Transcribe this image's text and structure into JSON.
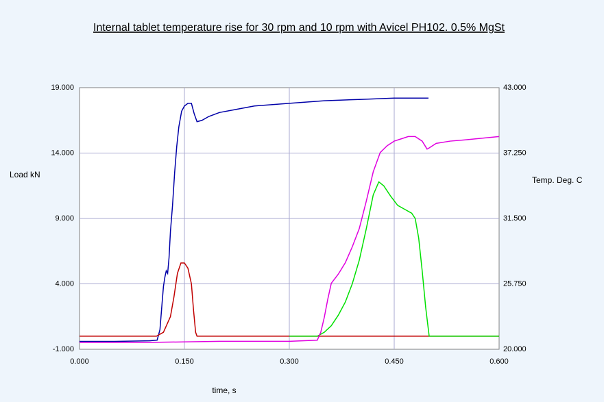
{
  "chart_data": {
    "type": "line",
    "title": "Internal tablet temperature rise for 30 rpm and 10 rpm with Avicel PH102. 0.5% MgSt",
    "x_label": "time, s",
    "y_label": "Load kN",
    "y2_label": "Temp. Deg. C",
    "xlim": [
      0,
      0.6
    ],
    "xticks": [
      {
        "value": 0,
        "label": "0.000"
      },
      {
        "value": 0.15,
        "label": "0.150"
      },
      {
        "value": 0.3,
        "label": "0.300"
      },
      {
        "value": 0.45,
        "label": "0.450"
      },
      {
        "value": 0.6,
        "label": "0.600"
      }
    ],
    "ylim": [
      -1,
      19
    ],
    "yticks": [
      {
        "value": -1,
        "label": "-1.000"
      },
      {
        "value": 4,
        "label": "4.000"
      },
      {
        "value": 9,
        "label": "9.000"
      },
      {
        "value": 14,
        "label": "14.000"
      },
      {
        "value": 19,
        "label": "19.000"
      }
    ],
    "y2lim": [
      20,
      43
    ],
    "y2ticks": [
      {
        "value": 20,
        "label": "20.000"
      },
      {
        "value": 25.75,
        "label": "25.750"
      },
      {
        "value": 31.5,
        "label": "31.500"
      },
      {
        "value": 37.25,
        "label": "37.250"
      },
      {
        "value": 43,
        "label": "43.000"
      }
    ],
    "grid": true,
    "series": [
      {
        "color": "#0000a8",
        "x": [
          0,
          0.05,
          0.1,
          0.111,
          0.115,
          0.118,
          0.12,
          0.122,
          0.124,
          0.126,
          0.128,
          0.13,
          0.133,
          0.136,
          0.139,
          0.142,
          0.146,
          0.15,
          0.155,
          0.16,
          0.164,
          0.168,
          0.175,
          0.185,
          0.2,
          0.22,
          0.25,
          0.3,
          0.35,
          0.4,
          0.45,
          0.499
        ],
        "values": [
          -0.4,
          -0.4,
          -0.35,
          -0.3,
          0.5,
          2.5,
          3.8,
          4.5,
          5,
          4.8,
          6,
          8,
          10,
          12.5,
          14.5,
          16,
          17.2,
          17.6,
          17.8,
          17.8,
          17,
          16.4,
          16.5,
          16.8,
          17.1,
          17.3,
          17.6,
          17.8,
          18.0,
          18.1,
          18.2,
          18.2
        ]
      },
      {
        "color": "#c00000",
        "x": [
          0,
          0.11,
          0.12,
          0.13,
          0.135,
          0.14,
          0.145,
          0.15,
          0.155,
          0.16,
          0.163,
          0.166,
          0.168,
          0.6
        ],
        "values": [
          0,
          0,
          0.3,
          1.5,
          3,
          4.8,
          5.6,
          5.6,
          5.2,
          4.0,
          2,
          0.3,
          0,
          0
        ]
      },
      {
        "color": "#00e000",
        "x": [
          0.3,
          0.34,
          0.35,
          0.36,
          0.37,
          0.38,
          0.39,
          0.4,
          0.41,
          0.42,
          0.428,
          0.435,
          0.445,
          0.455,
          0.465,
          0.475,
          0.48,
          0.485,
          0.49,
          0.495,
          0.5,
          0.6
        ],
        "values": [
          0,
          0,
          0.3,
          0.8,
          1.6,
          2.6,
          4.0,
          5.8,
          8.2,
          10.8,
          11.8,
          11.5,
          10.7,
          10.0,
          9.7,
          9.4,
          9.0,
          7.5,
          5,
          2.2,
          0,
          0
        ]
      },
      {
        "color": "#e000e0",
        "axis": "y2",
        "x": [
          0,
          0.1,
          0.2,
          0.3,
          0.34,
          0.345,
          0.35,
          0.355,
          0.36,
          0.37,
          0.38,
          0.39,
          0.4,
          0.41,
          0.42,
          0.43,
          0.44,
          0.45,
          0.46,
          0.47,
          0.48,
          0.49,
          0.497,
          0.5,
          0.51,
          0.53,
          0.55,
          0.6
        ],
        "values": [
          20.6,
          20.6,
          20.7,
          20.7,
          20.8,
          21.5,
          22.8,
          24.4,
          25.8,
          26.6,
          27.6,
          29.0,
          30.6,
          33.0,
          35.6,
          37.3,
          37.9,
          38.3,
          38.5,
          38.7,
          38.7,
          38.3,
          37.6,
          37.7,
          38.1,
          38.3,
          38.4,
          38.7
        ]
      }
    ]
  }
}
